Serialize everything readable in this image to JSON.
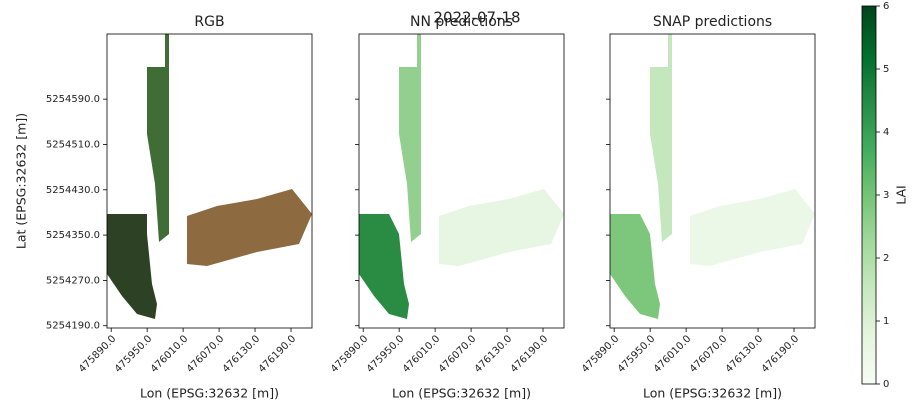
{
  "title": "2022-07-18",
  "chart_data": [
    {
      "type": "image",
      "title": "RGB",
      "xlabel": "Lon (EPSG:32632 [m])",
      "ylabel": "Lat (EPSG:32632 [m])",
      "xlim": [
        475883,
        476225
      ],
      "ylim": [
        5254186,
        5254705
      ],
      "xticks": [
        {
          "value": 475890,
          "label": "475890.0"
        },
        {
          "value": 475950,
          "label": "475950.0"
        },
        {
          "value": 476010,
          "label": "476010.0"
        },
        {
          "value": 476070,
          "label": "476070.0"
        },
        {
          "value": 476130,
          "label": "476130.0"
        },
        {
          "value": 476190,
          "label": "476190.0"
        }
      ],
      "yticks": [
        {
          "value": 5254190,
          "label": "5254190.0"
        },
        {
          "value": 5254270,
          "label": "5254270.0"
        },
        {
          "value": 5254350,
          "label": "5254350.0"
        },
        {
          "value": 5254430,
          "label": "5254430.0"
        },
        {
          "value": 5254510,
          "label": "5254510.0"
        },
        {
          "value": 5254590,
          "label": "5254590.0"
        }
      ]
    },
    {
      "type": "image",
      "title": "NN predictions",
      "xlabel": "Lon (EPSG:32632 [m])",
      "xlim": [
        475883,
        476225
      ],
      "ylim": [
        5254186,
        5254705
      ],
      "xticks": [
        {
          "value": 475890,
          "label": "475890.0"
        },
        {
          "value": 475950,
          "label": "475950.0"
        },
        {
          "value": 476010,
          "label": "476010.0"
        },
        {
          "value": 476070,
          "label": "476070.0"
        },
        {
          "value": 476130,
          "label": "476130.0"
        },
        {
          "value": 476190,
          "label": "476190.0"
        }
      ]
    },
    {
      "type": "image",
      "title": "SNAP predictions",
      "xlabel": "Lon (EPSG:32632 [m])",
      "xlim": [
        475883,
        476225
      ],
      "ylim": [
        5254186,
        5254705
      ],
      "xticks": [
        {
          "value": 475890,
          "label": "475890.0"
        },
        {
          "value": 475950,
          "label": "475950.0"
        },
        {
          "value": 476010,
          "label": "476010.0"
        },
        {
          "value": 476070,
          "label": "476070.0"
        },
        {
          "value": 476130,
          "label": "476130.0"
        },
        {
          "value": 476190,
          "label": "476190.0"
        }
      ]
    }
  ],
  "colorbar": {
    "label": "LAI",
    "ylim": [
      0,
      6
    ],
    "yticks": [
      0,
      1,
      2,
      3,
      4,
      5,
      6
    ]
  }
}
